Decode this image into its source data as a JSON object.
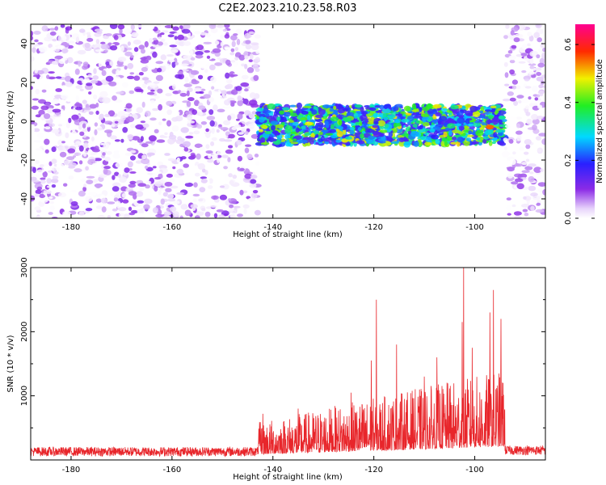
{
  "figure_title": "C2E2.2023.210.23.58.R03",
  "chart_data": [
    {
      "type": "heatmap",
      "title": "C2E2.2023.210.23.58.R03",
      "xlabel": "Height of straight line (km)",
      "ylabel": "Frequency (Hz)",
      "xlim": [
        -188,
        -86
      ],
      "ylim": [
        -50,
        50
      ],
      "x_ticks": [
        -180,
        -160,
        -140,
        -120,
        -100
      ],
      "x_tick_labels": [
        "-180",
        "-160",
        "-140",
        "-120",
        "-100"
      ],
      "y_ticks": [
        -40,
        -20,
        0,
        20,
        40
      ],
      "y_tick_labels": [
        "-40",
        "-20",
        "0",
        "20",
        "40"
      ],
      "colorbar": {
        "label": "Normalized spectral amplitude",
        "range": [
          0,
          0.67
        ],
        "ticks": [
          0.0,
          0.2,
          0.4,
          0.6
        ],
        "tick_labels": [
          "0.0",
          "0.2",
          "0.4",
          "0.6"
        ],
        "colormap": "rainbow (white-purple-blue-cyan-green-yellow-red-magenta)"
      },
      "regions": [
        {
          "x_range": [
            -188,
            -143
          ],
          "description_value": "broadband noise",
          "freq_range": [
            -50,
            50
          ],
          "amplitude_range": [
            0.0,
            0.12
          ]
        },
        {
          "x_range": [
            -143,
            -94
          ],
          "description_value": "signal band",
          "freq_range": [
            -12,
            8
          ],
          "amplitude_range": [
            0.15,
            0.5
          ]
        },
        {
          "x_range": [
            -94,
            -86
          ],
          "description_value": "broadband noise",
          "freq_range": [
            -50,
            50
          ],
          "amplitude_range": [
            0.0,
            0.1
          ]
        }
      ],
      "peak": {
        "x": -97,
        "freq": -3,
        "amplitude": 0.55
      }
    },
    {
      "type": "line",
      "xlabel": "Height of straight line (km)",
      "ylabel": "SNR (10 * v/v)",
      "xlim": [
        -188,
        -86
      ],
      "ylim": [
        0,
        3000
      ],
      "x_ticks": [
        -180,
        -160,
        -140,
        -120,
        -100
      ],
      "x_tick_labels": [
        "-180",
        "-160",
        "-140",
        "-120",
        "-100"
      ],
      "y_ticks": [
        1000,
        2000,
        3000
      ],
      "y_tick_labels": [
        "1000",
        "2000",
        "3000"
      ],
      "color": "#e8262b",
      "baseline_noise": {
        "x_range": [
          -188,
          -143
        ],
        "level": 130,
        "spread": 90
      },
      "signal_region": {
        "x_range": [
          -143,
          -94
        ],
        "level_start": 250,
        "level_end": 600
      },
      "tail_noise": {
        "x_range": [
          -94,
          -86
        ],
        "level": 150,
        "spread": 90
      },
      "peaks": [
        {
          "x": -142,
          "y": 720
        },
        {
          "x": -135,
          "y": 800
        },
        {
          "x": -124.5,
          "y": 1050
        },
        {
          "x": -120.5,
          "y": 1550
        },
        {
          "x": -119.5,
          "y": 2500
        },
        {
          "x": -115.5,
          "y": 1800
        },
        {
          "x": -110,
          "y": 1300
        },
        {
          "x": -107.5,
          "y": 1600
        },
        {
          "x": -102.5,
          "y": 2150
        },
        {
          "x": -102.2,
          "y": 3000
        },
        {
          "x": -100.5,
          "y": 1750
        },
        {
          "x": -97,
          "y": 2300
        },
        {
          "x": -96.3,
          "y": 2650
        },
        {
          "x": -94.8,
          "y": 2200
        }
      ]
    }
  ]
}
